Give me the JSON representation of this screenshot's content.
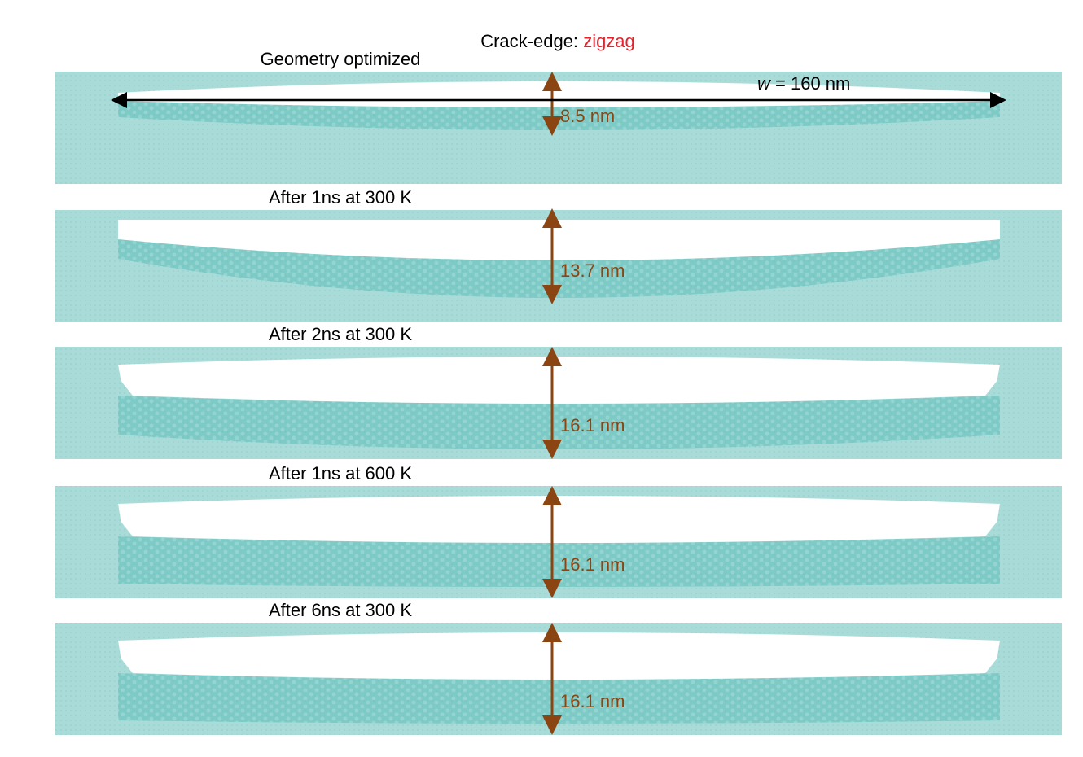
{
  "title": {
    "prefix": "Crack-edge:",
    "edge": "zigzag"
  },
  "width_label": {
    "symbol": "w",
    "text": "= 160 nm"
  },
  "panels": [
    {
      "label": "Geometry optimized",
      "opening": "8.5 nm"
    },
    {
      "label": "After 1ns at 300 K",
      "opening": "13.7 nm"
    },
    {
      "label": "After 2ns at 300 K",
      "opening": "16.1 nm"
    },
    {
      "label": "After 1ns at 600 K",
      "opening": "16.1 nm"
    },
    {
      "label": "After 6ns at 300 K",
      "opening": "16.1 nm"
    }
  ]
}
